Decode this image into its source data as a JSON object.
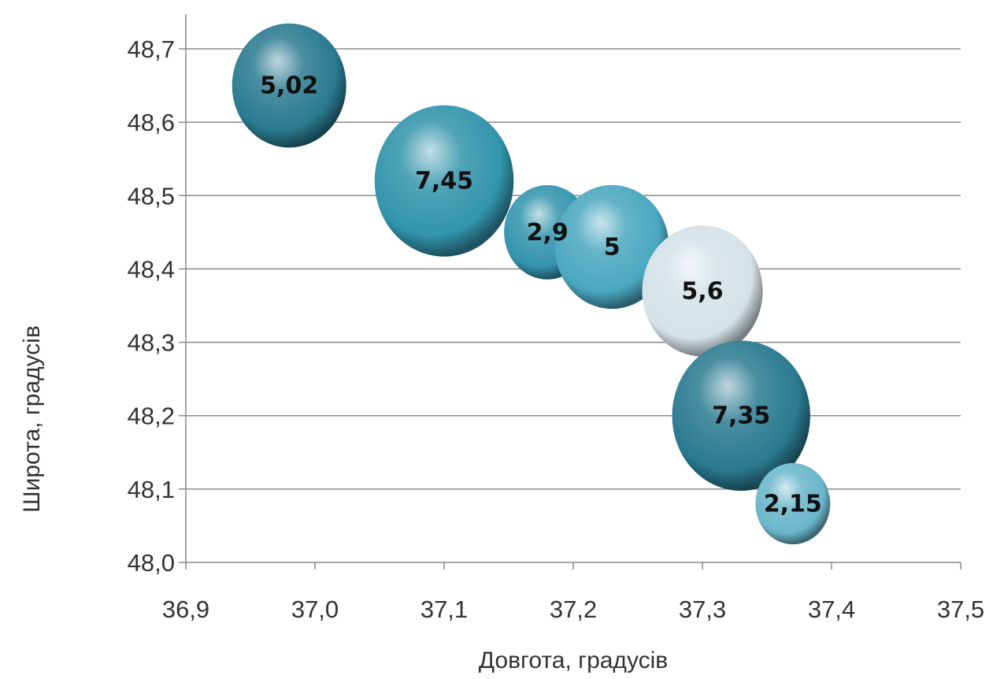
{
  "chart_data": {
    "type": "bubble",
    "xlabel": "Довгота, градусів",
    "ylabel": "Широта, градусів",
    "xlim": [
      36.9,
      37.5
    ],
    "ylim": [
      48.0,
      48.7
    ],
    "x_ticks": [
      "36,9",
      "37,0",
      "37,1",
      "37,2",
      "37,3",
      "37,4",
      "37,5"
    ],
    "y_ticks": [
      "48,0",
      "48,1",
      "48,2",
      "48,3",
      "48,4",
      "48,5",
      "48,6",
      "48,7"
    ],
    "grid": true,
    "legend": "none",
    "points": [
      {
        "x": 36.98,
        "y": 48.65,
        "size": 5.02,
        "label": "5,02",
        "color": "#2a7a90"
      },
      {
        "x": 37.1,
        "y": 48.52,
        "size": 7.45,
        "label": "7,45",
        "color": "#3294ac"
      },
      {
        "x": 37.18,
        "y": 48.45,
        "size": 2.9,
        "label": "2,9",
        "color": "#3494ad"
      },
      {
        "x": 37.23,
        "y": 48.43,
        "size": 5.0,
        "label": "5",
        "color": "#4aa7c0"
      },
      {
        "x": 37.3,
        "y": 48.37,
        "size": 5.6,
        "label": "5,6",
        "color": "#d4e2e8"
      },
      {
        "x": 37.33,
        "y": 48.2,
        "size": 7.35,
        "label": "7,35",
        "color": "#2a7a90"
      },
      {
        "x": 37.37,
        "y": 48.08,
        "size": 2.15,
        "label": "2,15",
        "color": "#6bb6cb"
      }
    ]
  }
}
